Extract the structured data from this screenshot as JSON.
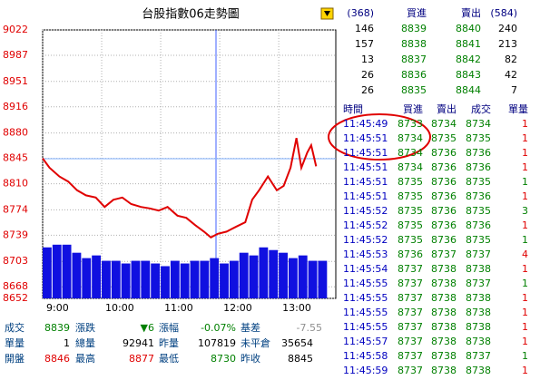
{
  "chart_data": [
    {
      "type": "line",
      "title": "台股指數06走勢圖",
      "xlim": [
        0,
        298
      ],
      "xticks": [
        {
          "value": 0,
          "label": "9:00"
        },
        {
          "value": 60,
          "label": "10:00"
        },
        {
          "value": 120,
          "label": "11:00"
        },
        {
          "value": 180,
          "label": "12:00"
        },
        {
          "value": 240,
          "label": "13:00"
        }
      ],
      "ylim": [
        8652,
        9022
      ],
      "yticks": [
        9022,
        8987,
        8951,
        8916,
        8880,
        8845,
        8810,
        8774,
        8739,
        8703,
        8668,
        8652
      ],
      "grid": true,
      "x": [
        0,
        7,
        17,
        26,
        35,
        44,
        54,
        63,
        72,
        81,
        90,
        100,
        109,
        118,
        127,
        137,
        146,
        155,
        164,
        171,
        178,
        187,
        197,
        206,
        213,
        220,
        229,
        238,
        245,
        252,
        258,
        263,
        269,
        273,
        278
      ],
      "series": [
        {
          "color": "#e00000",
          "values": [
            8845,
            8832,
            8820,
            8813,
            8801,
            8794,
            8791,
            8778,
            8788,
            8791,
            8782,
            8778,
            8776,
            8773,
            8778,
            8766,
            8763,
            8753,
            8744,
            8736,
            8741,
            8744,
            8751,
            8757,
            8788,
            8801,
            8820,
            8801,
            8807,
            8832,
            8873,
            8832,
            8853,
            8863,
            8834
          ]
        }
      ]
    },
    {
      "type": "bar",
      "xlim": [
        0,
        298
      ],
      "ylim": [
        0,
        100
      ],
      "x": [
        0,
        10,
        20,
        30,
        40,
        50,
        60,
        70,
        80,
        90,
        100,
        110,
        120,
        130,
        140,
        150,
        160,
        170,
        180,
        190,
        200,
        210,
        220,
        230,
        240,
        250,
        260,
        270,
        280
      ],
      "color": "#1010e0",
      "values": [
        19,
        20,
        20,
        17,
        15,
        16,
        14,
        14,
        13,
        14,
        14,
        13,
        12,
        14,
        13,
        14,
        14,
        15,
        13,
        14,
        17,
        16,
        19,
        18,
        17,
        15,
        16,
        14,
        14
      ]
    }
  ],
  "order_book": {
    "header": [
      "(368)",
      "買進",
      "賣出",
      "(584)"
    ],
    "rows": [
      [
        "146",
        "8839",
        "8840",
        "240"
      ],
      [
        "157",
        "8838",
        "8841",
        "213"
      ],
      [
        "13",
        "8837",
        "8842",
        "82"
      ],
      [
        "26",
        "8836",
        "8843",
        "42"
      ],
      [
        "26",
        "8835",
        "8844",
        "7"
      ]
    ]
  },
  "trades": {
    "header": [
      "時間",
      "買進",
      "賣出",
      "成交",
      "單量"
    ],
    "rows": [
      [
        "11:45:49",
        "8733",
        "8734",
        "8734",
        "1"
      ],
      [
        "11:45:51",
        "8734",
        "8735",
        "8735",
        "1"
      ],
      [
        "11:45:51",
        "8734",
        "8736",
        "8736",
        "1"
      ],
      [
        "11:45:51",
        "8734",
        "8736",
        "8736",
        "1"
      ],
      [
        "11:45:51",
        "8735",
        "8736",
        "8735",
        "1"
      ],
      [
        "11:45:51",
        "8735",
        "8736",
        "8736",
        "1"
      ],
      [
        "11:45:52",
        "8735",
        "8736",
        "8735",
        "3"
      ],
      [
        "11:45:52",
        "8735",
        "8736",
        "8736",
        "1"
      ],
      [
        "11:45:52",
        "8735",
        "8736",
        "8735",
        "1"
      ],
      [
        "11:45:53",
        "8736",
        "8737",
        "8737",
        "4"
      ],
      [
        "11:45:54",
        "8737",
        "8738",
        "8738",
        "1"
      ],
      [
        "11:45:55",
        "8737",
        "8738",
        "8737",
        "1"
      ],
      [
        "11:45:55",
        "8737",
        "8738",
        "8738",
        "1"
      ],
      [
        "11:45:55",
        "8737",
        "8738",
        "8738",
        "1"
      ],
      [
        "11:45:55",
        "8737",
        "8738",
        "8738",
        "1"
      ],
      [
        "11:45:57",
        "8737",
        "8738",
        "8738",
        "1"
      ],
      [
        "11:45:58",
        "8737",
        "8738",
        "8737",
        "1"
      ],
      [
        "11:45:59",
        "8737",
        "8738",
        "8738",
        "1"
      ]
    ]
  },
  "quote": {
    "rows": [
      [
        "成交",
        "8839",
        "漲跌",
        "▼6",
        "漲幅",
        "-0.07%",
        "基差",
        "-7.55"
      ],
      [
        "單量",
        "1",
        "總量",
        "92941",
        "昨量",
        "107819",
        "未平倉",
        "35654"
      ],
      [
        "開盤",
        "8846",
        "最高",
        "8877",
        "最低",
        "8730",
        "昨收",
        "8845"
      ]
    ]
  }
}
